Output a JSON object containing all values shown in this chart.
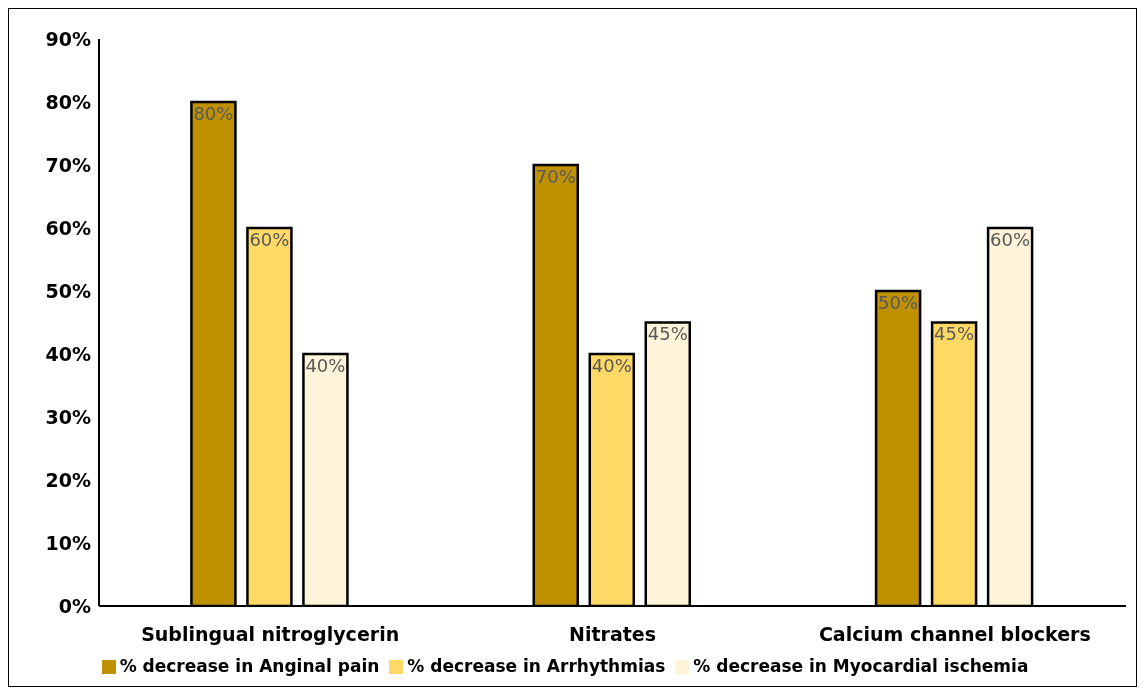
{
  "chart_data": {
    "type": "bar",
    "categories": [
      "Sublingual nitroglycerin",
      "Nitrates",
      "Calcium channel blockers"
    ],
    "series": [
      {
        "name": "% decrease in Anginal pain",
        "color": "#bf9000",
        "values": [
          80,
          70,
          50
        ],
        "value_labels": [
          "80%",
          "70%",
          "50%"
        ]
      },
      {
        "name": "% decrease in Arrhythmias",
        "color": "#ffd966",
        "values": [
          60,
          40,
          45
        ],
        "value_labels": [
          "60%",
          "40%",
          "45%"
        ]
      },
      {
        "name": "% decrease in Myocardial ischemia",
        "color": "#fff4d9",
        "values": [
          40,
          45,
          60
        ],
        "value_labels": [
          "40%",
          "45%",
          "60%"
        ]
      }
    ],
    "ylim": [
      0,
      90
    ],
    "yticks": [
      {
        "value": 0,
        "label": "0%"
      },
      {
        "value": 10,
        "label": "10%"
      },
      {
        "value": 20,
        "label": "20%"
      },
      {
        "value": 30,
        "label": "30%"
      },
      {
        "value": 40,
        "label": "40%"
      },
      {
        "value": 50,
        "label": "50%"
      },
      {
        "value": 60,
        "label": "60%"
      },
      {
        "value": 70,
        "label": "70%"
      },
      {
        "value": 80,
        "label": "80%"
      },
      {
        "value": 90,
        "label": "90%"
      }
    ],
    "grid": false,
    "legend": "bottom"
  }
}
